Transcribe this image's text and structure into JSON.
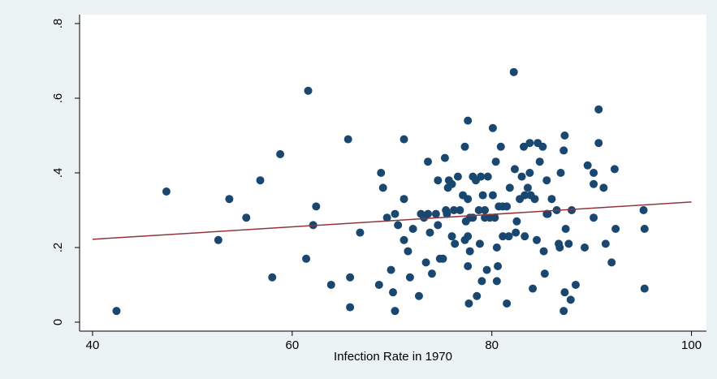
{
  "chart_data": {
    "type": "scatter",
    "x_label": "Infection Rate in 1970",
    "xlim": [
      38.7,
      101.5
    ],
    "xticks": [
      40,
      60,
      80,
      100
    ],
    "ylim": [
      -0.024,
      0.824
    ],
    "yticks": [
      0,
      {
        "value": 0.2,
        "label": ".2"
      },
      {
        "value": 0.4,
        "label": ".4"
      },
      {
        "value": 0.6,
        "label": ".6"
      },
      {
        "value": 0.8,
        "label": ".8"
      }
    ],
    "grid": false,
    "series": [
      {
        "color": "#1a476f",
        "x": [
          42.4,
          47.4,
          52.6,
          53.7,
          55.4,
          56.8,
          58.0,
          58.8,
          61.4,
          61.6,
          62.1,
          62.4,
          63.9,
          65.6,
          65.8,
          65.8,
          66.8,
          68.7,
          68.9,
          69.1,
          69.5,
          69.9,
          70.1,
          70.3,
          70.3,
          70.6,
          71.2,
          71.2,
          71.2,
          71.6,
          71.8,
          72.1,
          72.7,
          72.9,
          73.2,
          73.4,
          73.6,
          73.6,
          73.8,
          74.0,
          74.4,
          74.6,
          74.6,
          74.8,
          75.1,
          75.3,
          75.4,
          75.5,
          75.6,
          75.7,
          76.0,
          76.0,
          76.2,
          76.3,
          76.6,
          76.8,
          77.1,
          77.3,
          77.3,
          77.4,
          77.6,
          77.6,
          77.6,
          77.6,
          77.7,
          77.8,
          77.8,
          78.1,
          78.1,
          78.4,
          78.5,
          78.7,
          78.8,
          78.9,
          79.0,
          79.1,
          79.3,
          79.3,
          79.5,
          79.6,
          79.8,
          80.1,
          80.1,
          80.3,
          80.4,
          80.5,
          80.5,
          80.6,
          80.7,
          80.9,
          81.1,
          81.1,
          81.5,
          81.5,
          81.7,
          81.8,
          82.2,
          82.3,
          82.4,
          82.5,
          82.8,
          83.0,
          83.2,
          83.3,
          83.3,
          83.6,
          83.8,
          83.8,
          83.9,
          84.1,
          84.3,
          84.5,
          84.6,
          84.8,
          85.1,
          85.2,
          85.3,
          85.5,
          85.5,
          85.6,
          86.0,
          86.5,
          86.7,
          86.8,
          86.9,
          87.2,
          87.2,
          87.3,
          87.3,
          87.4,
          87.7,
          87.9,
          88.0,
          88.4,
          89.3,
          89.6,
          90.2,
          90.2,
          90.2,
          90.7,
          90.7,
          91.2,
          91.4,
          92.0,
          92.3,
          92.4,
          95.2,
          95.3,
          95.3
        ],
        "values": [
          0.03,
          0.35,
          0.22,
          0.33,
          0.28,
          0.38,
          0.12,
          0.45,
          0.17,
          0.62,
          0.26,
          0.31,
          0.1,
          0.49,
          0.12,
          0.04,
          0.24,
          0.1,
          0.4,
          0.36,
          0.28,
          0.14,
          0.08,
          0.03,
          0.29,
          0.26,
          0.22,
          0.49,
          0.33,
          0.19,
          0.12,
          0.25,
          0.07,
          0.29,
          0.28,
          0.16,
          0.29,
          0.43,
          0.24,
          0.13,
          0.29,
          0.26,
          0.38,
          0.17,
          0.17,
          0.44,
          0.3,
          0.29,
          0.36,
          0.38,
          0.37,
          0.23,
          0.3,
          0.21,
          0.39,
          0.3,
          0.34,
          0.47,
          0.22,
          0.27,
          0.54,
          0.23,
          0.15,
          0.33,
          0.05,
          0.28,
          0.19,
          0.39,
          0.28,
          0.38,
          0.07,
          0.3,
          0.21,
          0.39,
          0.11,
          0.34,
          0.28,
          0.3,
          0.14,
          0.39,
          0.28,
          0.52,
          0.34,
          0.28,
          0.43,
          0.2,
          0.11,
          0.15,
          0.31,
          0.47,
          0.23,
          0.31,
          0.05,
          0.31,
          0.23,
          0.36,
          0.67,
          0.41,
          0.24,
          0.27,
          0.33,
          0.39,
          0.47,
          0.34,
          0.23,
          0.36,
          0.48,
          0.4,
          0.34,
          0.09,
          0.33,
          0.22,
          0.48,
          0.43,
          0.47,
          0.19,
          0.13,
          0.29,
          0.38,
          0.29,
          0.33,
          0.3,
          0.21,
          0.2,
          0.4,
          0.46,
          0.03,
          0.5,
          0.08,
          0.25,
          0.21,
          0.06,
          0.3,
          0.1,
          0.2,
          0.42,
          0.4,
          0.37,
          0.28,
          0.57,
          0.48,
          0.36,
          0.21,
          0.16,
          0.41,
          0.25,
          0.3,
          0.25,
          0.09
        ]
      }
    ],
    "fit_line": {
      "color": "#90353b",
      "x": [
        40,
        100
      ],
      "values": [
        0.222,
        0.322
      ]
    }
  }
}
